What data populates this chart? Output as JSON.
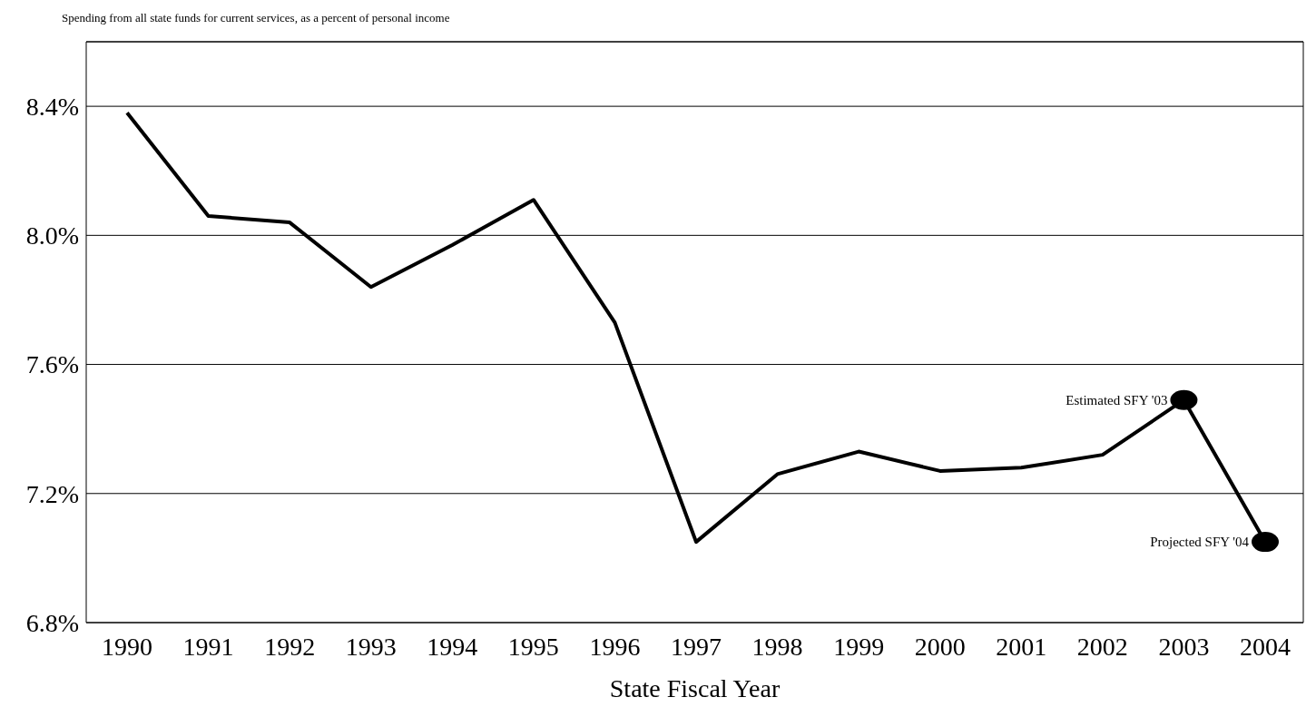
{
  "chart_data": {
    "type": "line",
    "title": "Spending from all state funds for current services, as a percent of personal income",
    "xlabel": "State Fiscal Year",
    "categories": [
      "1990",
      "1991",
      "1992",
      "1993",
      "1994",
      "1995",
      "1996",
      "1997",
      "1998",
      "1999",
      "2000",
      "2001",
      "2002",
      "2003",
      "2004"
    ],
    "series": [
      {
        "color": "#000000",
        "values": [
          8.38,
          8.06,
          8.04,
          7.84,
          7.97,
          8.11,
          7.73,
          7.05,
          7.26,
          7.33,
          7.27,
          7.28,
          7.32,
          7.49,
          7.05
        ]
      }
    ],
    "ylim": [
      6.8,
      8.6
    ],
    "yticks": [
      {
        "value": 6.8,
        "label": "6.8%"
      },
      {
        "value": 7.2,
        "label": "7.2%"
      },
      {
        "value": 7.6,
        "label": "7.6%"
      },
      {
        "value": 8.0,
        "label": "8.0%"
      },
      {
        "value": 8.4,
        "label": "8.4%"
      }
    ],
    "grid": "y",
    "marker": "none",
    "line_style": "solid",
    "legend": false,
    "annotations": [
      {
        "text": "Estimated SFY '03",
        "x": "2003",
        "y": 7.49
      },
      {
        "text": "Projected SFY '04",
        "x": "2004",
        "y": 7.05
      }
    ]
  }
}
